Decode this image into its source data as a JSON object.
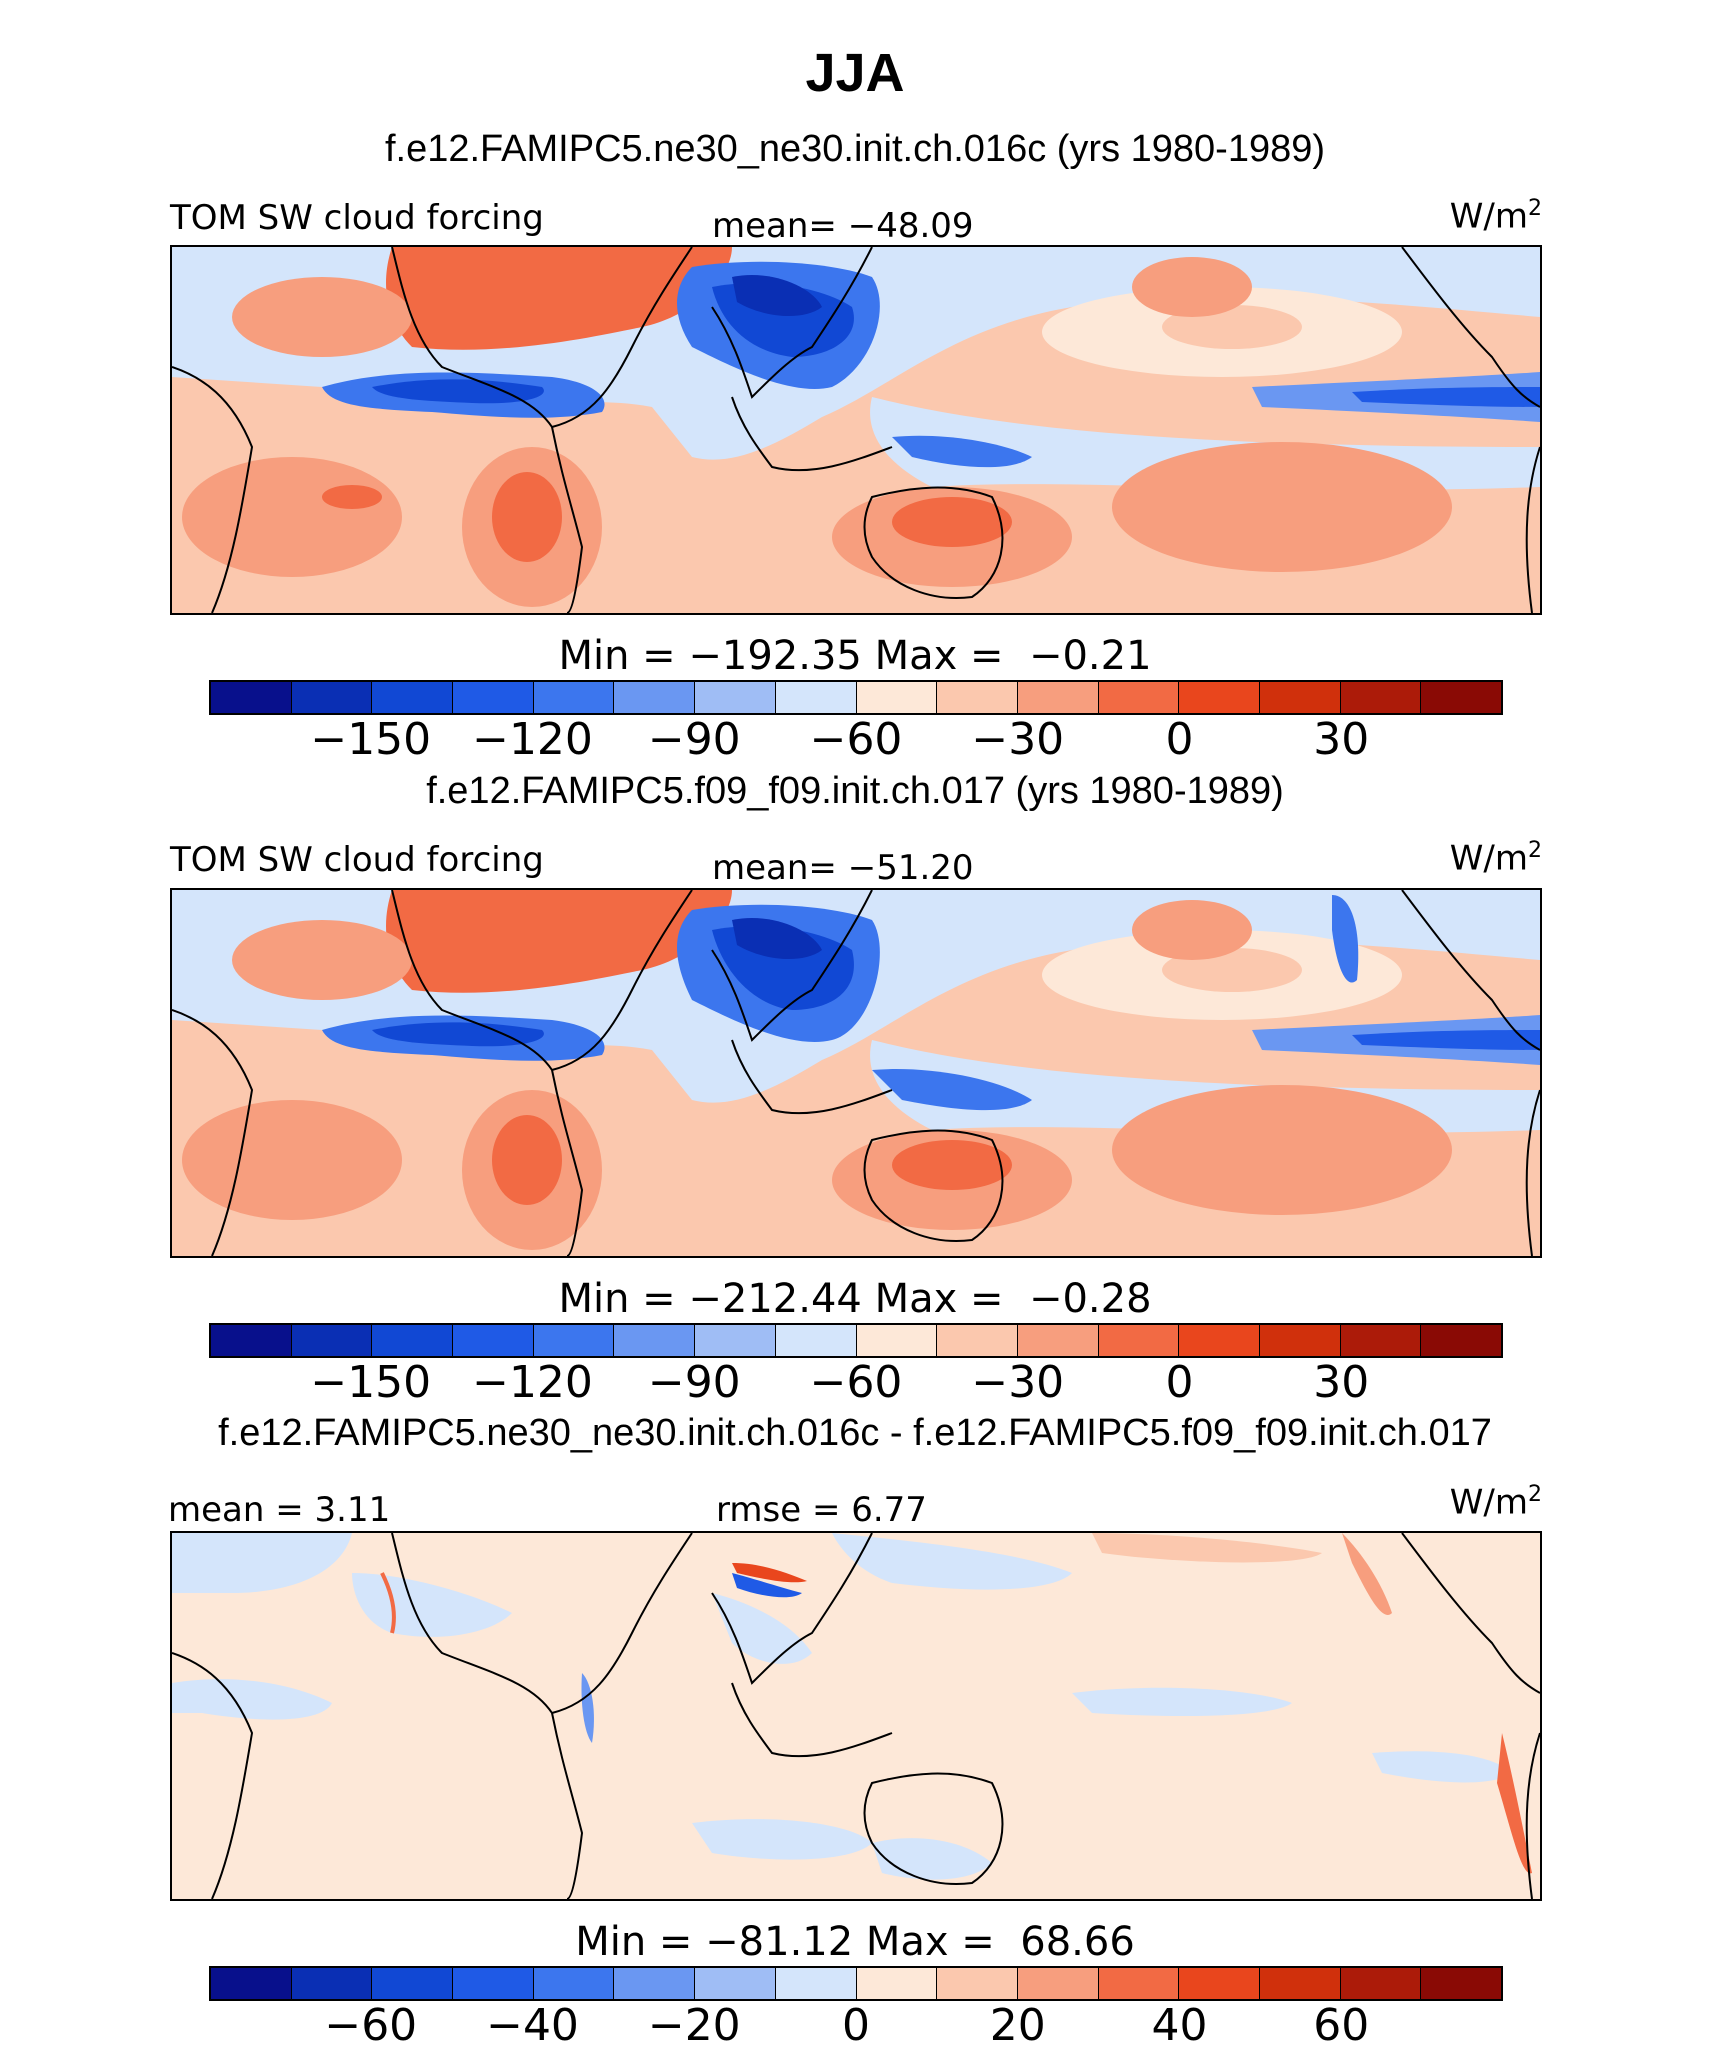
{
  "title": "JJA",
  "panels": [
    {
      "case_title": "f.e12.FAMIPC5.ne30_ne30.init.ch.016c (yrs 1980-1989)",
      "left_label": "TOM SW cloud forcing",
      "center_label": "mean= −48.09",
      "units": "W/m",
      "units_sup": "2",
      "minmax": "Min = −192.35 Max =  −0.21",
      "colorbar_ticks": [
        "−150",
        "−120",
        "−90",
        "−60",
        "−30",
        "0",
        "30"
      ],
      "colorbar_colors": [
        "#08108c",
        "#0a2fb4",
        "#1148d4",
        "#1f5ae6",
        "#3c76ee",
        "#6a97f2",
        "#9fbdf5",
        "#d4e5fb",
        "#fde8d8",
        "#fbc8ae",
        "#f79e7e",
        "#f26a44",
        "#e9461d",
        "#d0300c",
        "#ac1b09",
        "#8a0a05"
      ]
    },
    {
      "case_title": "f.e12.FAMIPC5.f09_f09.init.ch.017 (yrs 1980-1989)",
      "left_label": "TOM SW cloud forcing",
      "center_label": "mean= −51.20",
      "units": "W/m",
      "units_sup": "2",
      "minmax": "Min = −212.44 Max =  −0.28",
      "colorbar_ticks": [
        "−150",
        "−120",
        "−90",
        "−60",
        "−30",
        "0",
        "30"
      ],
      "colorbar_colors": [
        "#08108c",
        "#0a2fb4",
        "#1148d4",
        "#1f5ae6",
        "#3c76ee",
        "#6a97f2",
        "#9fbdf5",
        "#d4e5fb",
        "#fde8d8",
        "#fbc8ae",
        "#f79e7e",
        "#f26a44",
        "#e9461d",
        "#d0300c",
        "#ac1b09",
        "#8a0a05"
      ]
    },
    {
      "case_title": "f.e12.FAMIPC5.ne30_ne30.init.ch.016c - f.e12.FAMIPC5.f09_f09.init.ch.017",
      "left_label": "mean =   3.11",
      "center_label": "rmse =   6.77",
      "units": "W/m",
      "units_sup": "2",
      "minmax": "Min = −81.12 Max =  68.66",
      "colorbar_ticks": [
        "−60",
        "−40",
        "−20",
        "0",
        "20",
        "40",
        "60"
      ],
      "colorbar_colors": [
        "#08108c",
        "#0a2fb4",
        "#1148d4",
        "#1f5ae6",
        "#3c76ee",
        "#6a97f2",
        "#9fbdf5",
        "#d4e5fb",
        "#fde8d8",
        "#fbc8ae",
        "#f79e7e",
        "#f26a44",
        "#e9461d",
        "#d0300c",
        "#ac1b09",
        "#8a0a05"
      ]
    }
  ]
}
